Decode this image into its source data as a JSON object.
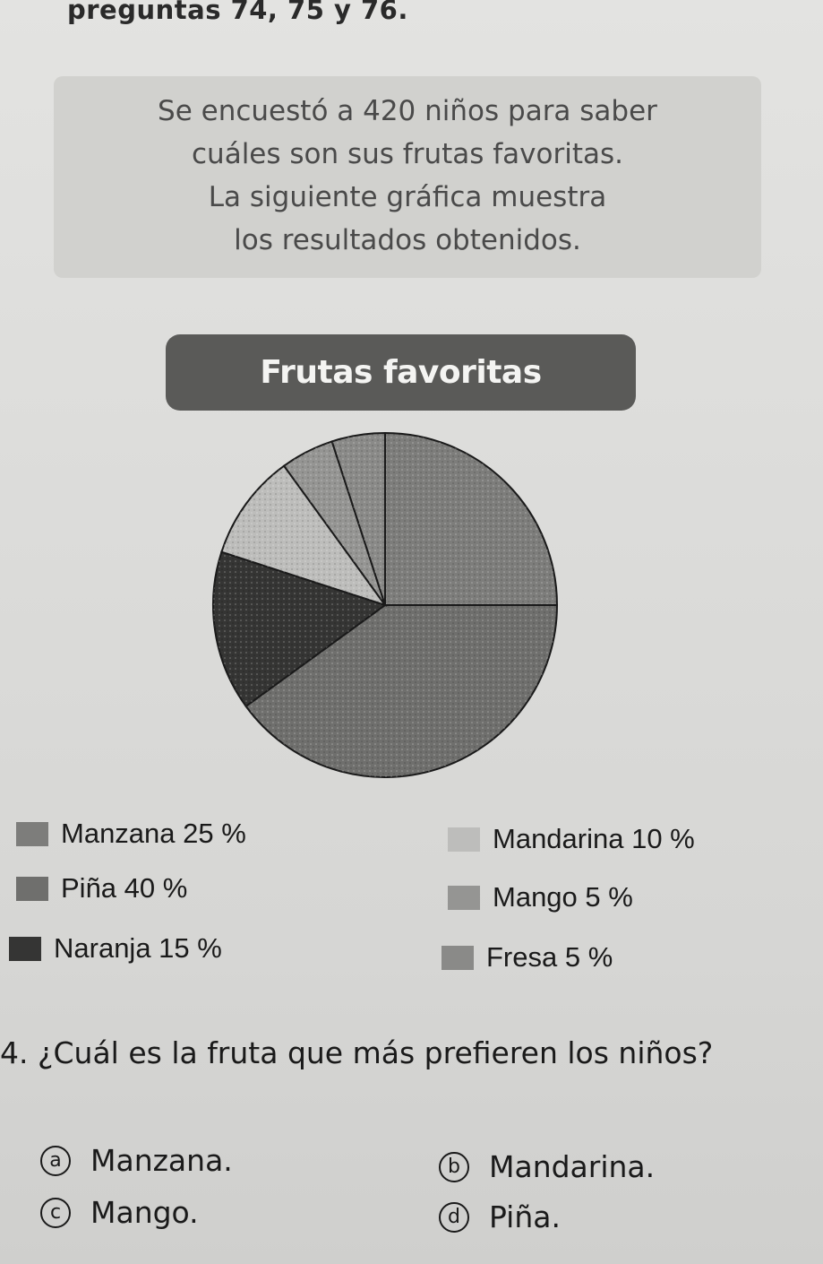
{
  "header": {
    "text": "preguntas 74, 75 y 76."
  },
  "intro": {
    "line1": "Se encuestó a 420 niños para saber",
    "line2": "cuáles son sus frutas favoritas.",
    "line3": "La siguiente gráfica muestra",
    "line4": "los resultados obtenidos."
  },
  "chart_data": {
    "type": "pie",
    "title": "Frutas favoritas",
    "slices": [
      {
        "label": "Manzana",
        "value": 25,
        "display": "Manzana 25 %",
        "color": "#7d7d7b"
      },
      {
        "label": "Piña",
        "value": 40,
        "display": "Piña 40 %",
        "color": "#6f6f6d"
      },
      {
        "label": "Naranja",
        "value": 15,
        "display": "Naranja 15 %",
        "color": "#353534"
      },
      {
        "label": "Mandarina",
        "value": 10,
        "display": "Mandarina 10 %",
        "color": "#bdbdbb"
      },
      {
        "label": "Mango",
        "value": 5,
        "display": "Mango 5 %",
        "color": "#959593"
      },
      {
        "label": "Fresa",
        "value": 5,
        "display": "Fresa 5 %",
        "color": "#8a8a88"
      }
    ]
  },
  "question": {
    "text": "4. ¿Cuál es la fruta que más prefieren los niños?",
    "options": [
      {
        "letter": "a",
        "text": "Manzana."
      },
      {
        "letter": "b",
        "text": "Mandarina."
      },
      {
        "letter": "c",
        "text": "Mango."
      },
      {
        "letter": "d",
        "text": "Piña."
      }
    ]
  }
}
